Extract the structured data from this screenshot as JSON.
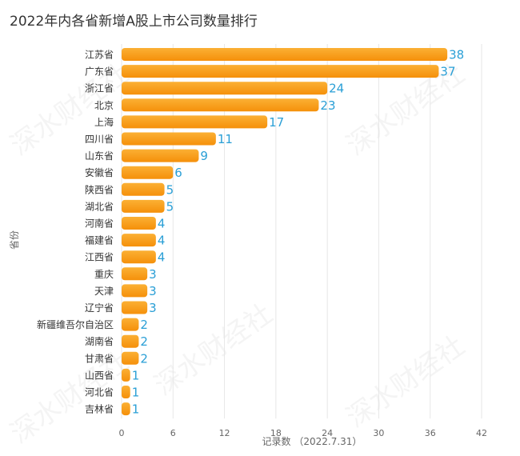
{
  "title": "2022年内各省新增A股上市公司数量排行",
  "watermark_text": "深水财经社",
  "chart_data": {
    "type": "bar",
    "orientation": "horizontal",
    "categories": [
      "江苏省",
      "广东省",
      "浙江省",
      "北京",
      "上海",
      "四川省",
      "山东省",
      "安徽省",
      "陕西省",
      "湖北省",
      "河南省",
      "福建省",
      "江西省",
      "重庆",
      "天津",
      "辽宁省",
      "新疆维吾尔自治区",
      "湖南省",
      "甘肃省",
      "山西省",
      "河北省",
      "吉林省"
    ],
    "values": [
      38,
      37,
      24,
      23,
      17,
      11,
      9,
      6,
      5,
      5,
      4,
      4,
      4,
      3,
      3,
      3,
      2,
      2,
      2,
      1,
      1,
      1
    ],
    "xlabel": "记录数 （2022.7.31）",
    "ylabel": "省份",
    "xlim": [
      0,
      42
    ],
    "xticks": [
      0,
      6,
      12,
      18,
      24,
      30,
      36,
      42
    ],
    "grid": true,
    "bar_color": "#f99c14",
    "label_color": "#2a9fd6"
  }
}
